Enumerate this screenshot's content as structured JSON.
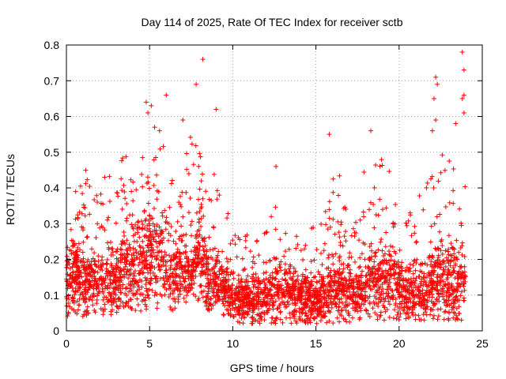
{
  "chart_data": {
    "type": "scatter",
    "title": "Day 114 of 2025, Rate Of TEC Index for receiver sctb",
    "xlabel": "GPS time / hours",
    "ylabel": "ROTI / TECUs",
    "xlim": [
      0,
      25
    ],
    "ylim": [
      0,
      0.8
    ],
    "x_ticks": [
      0,
      5,
      10,
      15,
      20,
      25
    ],
    "y_ticks": [
      0,
      0.1,
      0.2,
      0.3,
      0.4,
      0.5,
      0.6,
      0.7,
      0.8
    ],
    "x_tick_labels": [
      "0",
      "5",
      "10",
      "15",
      "20",
      "25"
    ],
    "y_tick_labels": [
      "0",
      "0.1",
      "0.2",
      "0.3",
      "0.4",
      "0.5",
      "0.6",
      "0.7",
      "0.8"
    ],
    "grid": true,
    "marker": "+",
    "color": "#ff0000",
    "outliers": [
      {
        "x": 4.8,
        "y": 0.64
      },
      {
        "x": 4.9,
        "y": 0.61
      },
      {
        "x": 5.1,
        "y": 0.63
      },
      {
        "x": 5.3,
        "y": 0.57
      },
      {
        "x": 5.6,
        "y": 0.56
      },
      {
        "x": 6.0,
        "y": 0.66
      },
      {
        "x": 7.0,
        "y": 0.59
      },
      {
        "x": 7.8,
        "y": 0.69
      },
      {
        "x": 8.2,
        "y": 0.76
      },
      {
        "x": 9.0,
        "y": 0.62
      },
      {
        "x": 12.6,
        "y": 0.46
      },
      {
        "x": 15.8,
        "y": 0.55
      },
      {
        "x": 18.3,
        "y": 0.56
      },
      {
        "x": 22.1,
        "y": 0.65
      },
      {
        "x": 22.2,
        "y": 0.71
      },
      {
        "x": 22.3,
        "y": 0.69
      },
      {
        "x": 22.2,
        "y": 0.59
      },
      {
        "x": 22.0,
        "y": 0.56
      },
      {
        "x": 23.4,
        "y": 0.58
      },
      {
        "x": 23.8,
        "y": 0.78
      },
      {
        "x": 23.9,
        "y": 0.73
      },
      {
        "x": 23.9,
        "y": 0.66
      },
      {
        "x": 23.8,
        "y": 0.65
      },
      {
        "x": 23.9,
        "y": 0.61
      }
    ],
    "envelope_x": [
      0,
      0.5,
      1,
      1.5,
      2,
      2.5,
      3,
      3.5,
      4,
      4.5,
      5,
      5.5,
      6,
      6.5,
      7,
      7.5,
      8,
      8.5,
      9,
      9.5,
      10,
      10.5,
      11,
      11.5,
      12,
      12.5,
      13,
      13.5,
      14,
      14.5,
      15,
      15.5,
      16,
      16.5,
      17,
      17.5,
      18,
      18.5,
      19,
      19.5,
      20,
      20.5,
      21,
      21.5,
      22,
      22.5,
      23,
      23.5,
      24
    ],
    "envelope_y_max": [
      0.35,
      0.38,
      0.47,
      0.42,
      0.4,
      0.45,
      0.38,
      0.55,
      0.45,
      0.5,
      0.6,
      0.52,
      0.55,
      0.4,
      0.5,
      0.55,
      0.52,
      0.35,
      0.5,
      0.35,
      0.3,
      0.28,
      0.3,
      0.28,
      0.3,
      0.4,
      0.32,
      0.36,
      0.32,
      0.3,
      0.3,
      0.32,
      0.54,
      0.42,
      0.36,
      0.3,
      0.5,
      0.52,
      0.48,
      0.45,
      0.35,
      0.3,
      0.4,
      0.38,
      0.5,
      0.55,
      0.48,
      0.45,
      0.5
    ],
    "envelope_y_min": [
      0.04,
      0.05,
      0.04,
      0.05,
      0.05,
      0.04,
      0.05,
      0.05,
      0.06,
      0.05,
      0.06,
      0.06,
      0.05,
      0.06,
      0.06,
      0.1,
      0.08,
      0.05,
      0.05,
      0.04,
      0.03,
      0.02,
      0.02,
      0.02,
      0.02,
      0.02,
      0.02,
      0.02,
      0.02,
      0.02,
      0.02,
      0.02,
      0.02,
      0.02,
      0.02,
      0.03,
      0.03,
      0.03,
      0.03,
      0.03,
      0.03,
      0.03,
      0.03,
      0.03,
      0.03,
      0.03,
      0.03,
      0.03,
      0.03
    ],
    "typical_y": [
      0.15,
      0.16,
      0.13,
      0.14,
      0.14,
      0.15,
      0.13,
      0.2,
      0.18,
      0.2,
      0.22,
      0.2,
      0.2,
      0.16,
      0.18,
      0.15,
      0.25,
      0.14,
      0.15,
      0.12,
      0.1,
      0.09,
      0.09,
      0.09,
      0.1,
      0.12,
      0.1,
      0.11,
      0.1,
      0.1,
      0.09,
      0.1,
      0.13,
      0.12,
      0.11,
      0.1,
      0.13,
      0.15,
      0.14,
      0.14,
      0.12,
      0.11,
      0.12,
      0.12,
      0.13,
      0.15,
      0.14,
      0.14,
      0.15
    ],
    "sample_count": 3500
  }
}
